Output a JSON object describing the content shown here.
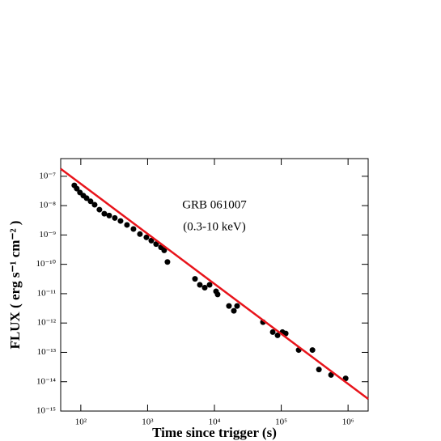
{
  "chart_data": {
    "type": "scatter",
    "xlabel": "Time since trigger (s)",
    "ylabel": "FLUX ( erg s⁻¹ cm⁻² )",
    "annotations": [
      "GRB 061007",
      "(0.3-10 keV)"
    ],
    "log_x": true,
    "log_y": true,
    "xlim": [
      50,
      2000000
    ],
    "ylim": [
      1e-15,
      4e-07
    ],
    "xticks": [
      {
        "value": 100,
        "label": "10²"
      },
      {
        "value": 1000,
        "label": "10³"
      },
      {
        "value": 10000,
        "label": "10⁴"
      },
      {
        "value": 100000,
        "label": "10⁵"
      },
      {
        "value": 1000000,
        "label": "10⁶"
      }
    ],
    "yticks": [
      {
        "value": 1e-07,
        "label": "10⁻⁷"
      },
      {
        "value": 1e-08,
        "label": "10⁻⁸"
      },
      {
        "value": 1e-09,
        "label": "10⁻⁹"
      },
      {
        "value": 1e-10,
        "label": "10⁻¹⁰"
      },
      {
        "value": 1e-11,
        "label": "10⁻¹¹"
      },
      {
        "value": 1e-12,
        "label": "10⁻¹²"
      },
      {
        "value": 1e-13,
        "label": "10⁻¹³"
      },
      {
        "value": 1e-14,
        "label": "10⁻¹⁴"
      },
      {
        "value": 1e-15,
        "label": "10⁻¹⁵"
      }
    ],
    "color": "#000000",
    "x": [
      80,
      87,
      97,
      109,
      122,
      140,
      161,
      190,
      225,
      266,
      323,
      393,
      491,
      614,
      767,
      959,
      1135,
      1340,
      1585,
      1770,
      1980,
      5120,
      6050,
      7160,
      8460,
      10570,
      11170,
      16500,
      19540,
      21830,
      53300,
      74600,
      88100,
      104200,
      116600,
      182300,
      293100,
      366400,
      556000,
      920000
    ],
    "values": [
      4.9e-08,
      3.8e-08,
      2.8e-08,
      2.2e-08,
      1.8e-08,
      1.4e-08,
      1.07e-08,
      7.3e-09,
      5.3e-09,
      4.6e-09,
      3.8e-09,
      3e-09,
      2.2e-09,
      1.6e-09,
      1.07e-09,
      8.3e-10,
      6.4e-10,
      4.9e-10,
      3.8e-10,
      3e-10,
      1.2e-10,
      3.2e-11,
      2e-11,
      1.6e-11,
      2e-11,
      1.2e-11,
      9.4e-12,
      3.8e-12,
      2.6e-12,
      3.8e-12,
      1.07e-12,
      4.9e-13,
      3.8e-13,
      4.9e-13,
      4.4e-13,
      1.2e-13,
      1.2e-13,
      2.6e-14,
      1.7e-14,
      1.3e-14
    ],
    "fit": {
      "x": [
        50,
        2000000
      ],
      "values": [
        1.8e-07,
        2.6e-15
      ],
      "color": "#e8141b"
    }
  }
}
